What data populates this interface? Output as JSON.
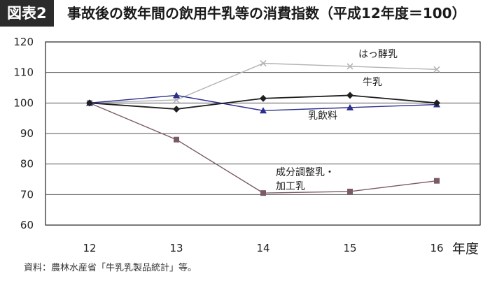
{
  "header": {
    "figure_label": "図表2",
    "title": "事故後の数年間の飲用牛乳等の消費指数（平成12年度＝100）"
  },
  "source_note": "資料：農林水産省「牛乳乳製品統計」等。",
  "chart_data": {
    "type": "line",
    "title": "事故後の数年間の飲用牛乳等の消費指数（平成12年度＝100）",
    "xlabel": "年度",
    "ylabel": "",
    "x": [
      12,
      13,
      14,
      15,
      16
    ],
    "x_tick_labels": [
      "12",
      "13",
      "14",
      "15",
      "16"
    ],
    "ylim": [
      60,
      120
    ],
    "y_ticks": [
      60,
      70,
      80,
      90,
      100,
      110,
      120
    ],
    "grid": true,
    "legend": "inline labels",
    "series": [
      {
        "name": "はっ酵乳",
        "values": [
          100,
          101,
          113,
          112,
          111
        ],
        "color": "#b3b3b3",
        "marker": "x"
      },
      {
        "name": "牛乳",
        "values": [
          100,
          98,
          101.5,
          102.5,
          100
        ],
        "color": "#1f1f1f",
        "marker": "diamond"
      },
      {
        "name": "乳飲料",
        "values": [
          100,
          102.5,
          97.5,
          98.5,
          99.5
        ],
        "color": "#2b2f8f",
        "marker": "triangle"
      },
      {
        "name": "成分調整乳・加工乳",
        "label_lines": [
          "成分調整乳・",
          "加工乳"
        ],
        "values": [
          100,
          88,
          70.5,
          71,
          74.5
        ],
        "color": "#7a5a66",
        "marker": "square"
      }
    ]
  }
}
